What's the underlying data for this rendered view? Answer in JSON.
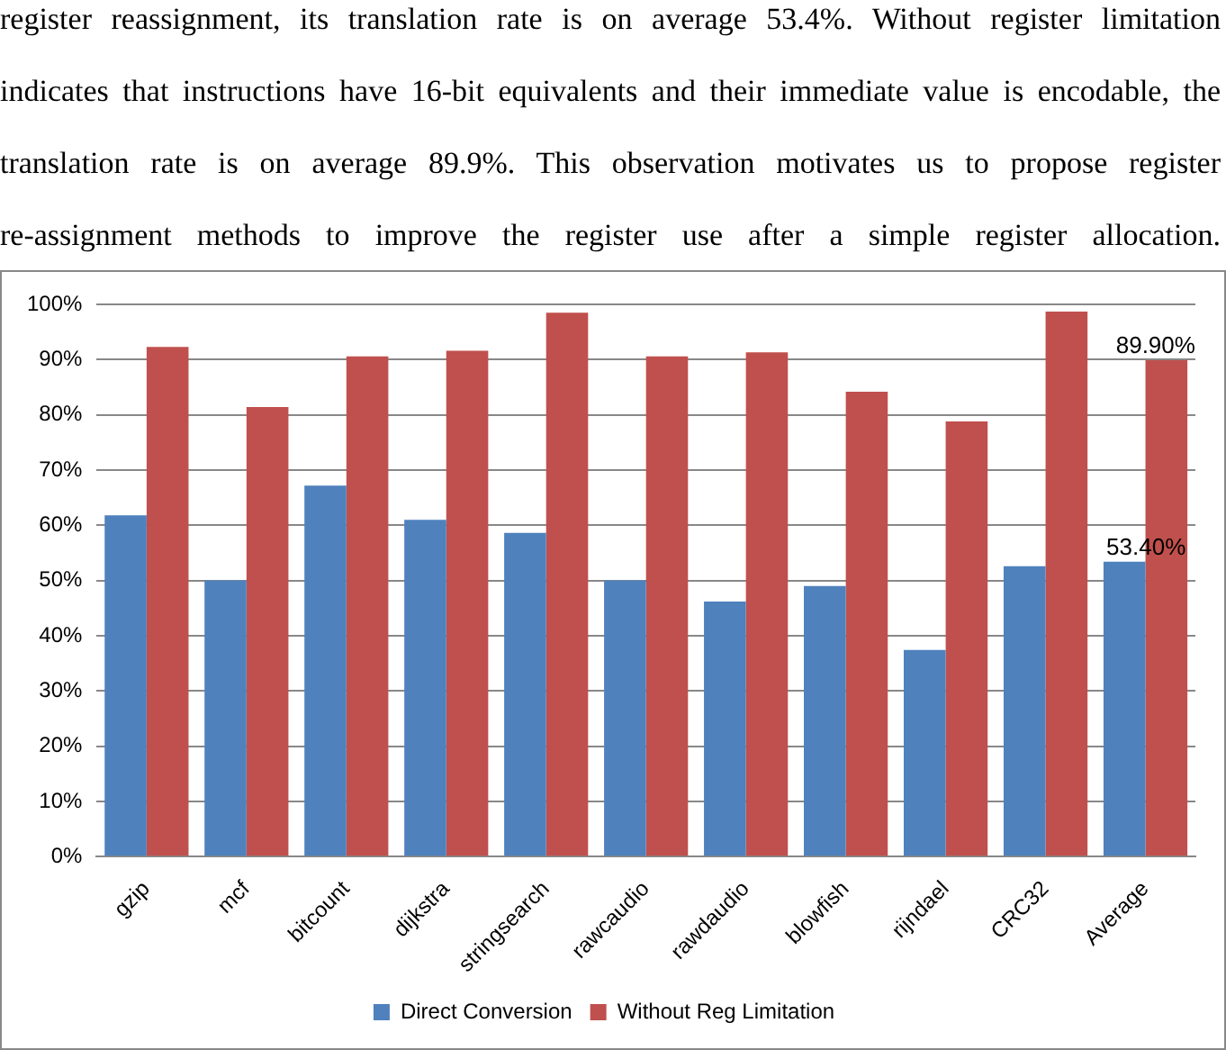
{
  "chart_data": {
    "type": "bar",
    "annotations": [
      "register reassignment, its translation rate is on average 53.4%.  Without register limitation",
      "indicates that instructions have 16-bit equivalents and their immediate value is encodable, the",
      "translation rate is on average 89.9%. This observation motivates us to propose register",
      "re-assignment methods to improve the register use after a simple register allocation."
    ],
    "categories": [
      "gzip",
      "mcf",
      "bitcount",
      "dijkstra",
      "stringsearch",
      "rawcaudio",
      "rawdaudio",
      "blowfish",
      "rijndael",
      "CRC32",
      "Average"
    ],
    "series": [
      {
        "name": "Direct Conversion",
        "color": "#4f81bd",
        "values": [
          61.8,
          50,
          67.2,
          61,
          58.6,
          50,
          46.2,
          49,
          37.4,
          52.6,
          53.4
        ],
        "value_labels": [
          null,
          null,
          null,
          null,
          null,
          null,
          null,
          null,
          null,
          null,
          "53.40%"
        ]
      },
      {
        "name": "Without Reg Limitation",
        "color": "#c0504d",
        "values": [
          92.3,
          81.4,
          90.6,
          91.6,
          98.5,
          90.6,
          91.3,
          84.2,
          78.8,
          98.7,
          89.9
        ],
        "value_labels": [
          null,
          null,
          null,
          null,
          null,
          null,
          null,
          null,
          null,
          null,
          "89.90%"
        ]
      }
    ],
    "ylim": [
      0,
      100
    ],
    "yticks": [
      {
        "value": 0,
        "label": "0%"
      },
      {
        "value": 10,
        "label": "10%"
      },
      {
        "value": 20,
        "label": "20%"
      },
      {
        "value": 30,
        "label": "30%"
      },
      {
        "value": 40,
        "label": "40%"
      },
      {
        "value": 50,
        "label": "50%"
      },
      {
        "value": 60,
        "label": "60%"
      },
      {
        "value": 70,
        "label": "70%"
      },
      {
        "value": 80,
        "label": "80%"
      },
      {
        "value": 90,
        "label": "90%"
      },
      {
        "value": 100,
        "label": "100%"
      }
    ],
    "grid": "y",
    "legend": "bottom"
  }
}
